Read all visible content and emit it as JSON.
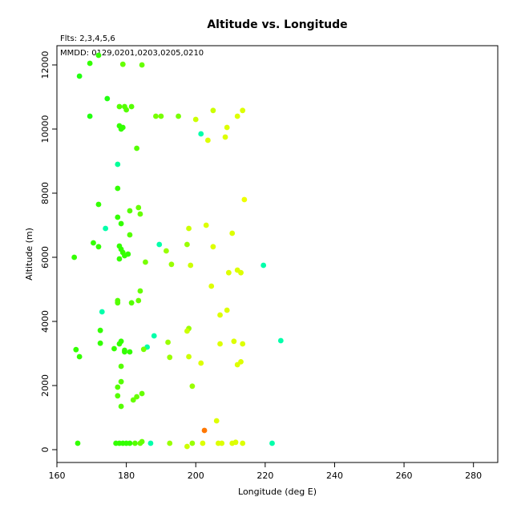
{
  "chart_data": {
    "type": "scatter",
    "title": "Altitude vs. Longitude",
    "subtitle": "Flts: 2,3,4,5,6",
    "annotation": "MMDD: 0129,0201,0203,0205,0210",
    "xlabel": "Longitude (deg E)",
    "ylabel": "Altitude (m)",
    "xlim": [
      160,
      287
    ],
    "ylim": [
      -400,
      12600
    ],
    "xticks": [
      160,
      180,
      200,
      220,
      240,
      260,
      280
    ],
    "yticks": [
      0,
      2000,
      4000,
      6000,
      8000,
      10000,
      12000
    ],
    "grid": false,
    "legend": "none",
    "points": [
      {
        "x": 172.0,
        "y": 12300,
        "color": "#33ff00"
      },
      {
        "x": 169.5,
        "y": 12050,
        "color": "#33ff00"
      },
      {
        "x": 179.0,
        "y": 12020,
        "color": "#66ff00"
      },
      {
        "x": 184.5,
        "y": 12000,
        "color": "#66ff00"
      },
      {
        "x": 166.5,
        "y": 11650,
        "color": "#22ff11"
      },
      {
        "x": 174.5,
        "y": 10950,
        "color": "#22ff11"
      },
      {
        "x": 178.0,
        "y": 10700,
        "color": "#55ff00"
      },
      {
        "x": 179.5,
        "y": 10700,
        "color": "#55ff00"
      },
      {
        "x": 181.5,
        "y": 10700,
        "color": "#55ff00"
      },
      {
        "x": 180.0,
        "y": 10600,
        "color": "#55ff00"
      },
      {
        "x": 169.5,
        "y": 10400,
        "color": "#22ff11"
      },
      {
        "x": 188.5,
        "y": 10400,
        "color": "#77ff00"
      },
      {
        "x": 190.0,
        "y": 10400,
        "color": "#77ff00"
      },
      {
        "x": 195.0,
        "y": 10400,
        "color": "#77ff00"
      },
      {
        "x": 205.0,
        "y": 10580,
        "color": "#ccff00"
      },
      {
        "x": 213.5,
        "y": 10580,
        "color": "#ddff00"
      },
      {
        "x": 212.0,
        "y": 10400,
        "color": "#ddff00"
      },
      {
        "x": 200.0,
        "y": 10300,
        "color": "#ccff00"
      },
      {
        "x": 178.0,
        "y": 10100,
        "color": "#33ff00"
      },
      {
        "x": 179.0,
        "y": 10050,
        "color": "#33ff00"
      },
      {
        "x": 178.5,
        "y": 10000,
        "color": "#33ff00"
      },
      {
        "x": 209.0,
        "y": 10050,
        "color": "#ddff00"
      },
      {
        "x": 201.5,
        "y": 9850,
        "color": "#00ffaa"
      },
      {
        "x": 208.5,
        "y": 9750,
        "color": "#ddff00"
      },
      {
        "x": 203.5,
        "y": 9650,
        "color": "#ddff00"
      },
      {
        "x": 183.0,
        "y": 9400,
        "color": "#55ff00"
      },
      {
        "x": 177.5,
        "y": 8900,
        "color": "#00ff99"
      },
      {
        "x": 177.5,
        "y": 8150,
        "color": "#33ff00"
      },
      {
        "x": 214.0,
        "y": 7800,
        "color": "#eeff00"
      },
      {
        "x": 172.0,
        "y": 7650,
        "color": "#33ff00"
      },
      {
        "x": 183.5,
        "y": 7550,
        "color": "#66ff00"
      },
      {
        "x": 181.0,
        "y": 7450,
        "color": "#55ff00"
      },
      {
        "x": 184.0,
        "y": 7350,
        "color": "#66ff00"
      },
      {
        "x": 177.5,
        "y": 7250,
        "color": "#33ff00"
      },
      {
        "x": 178.5,
        "y": 7050,
        "color": "#33ff00"
      },
      {
        "x": 203.0,
        "y": 7000,
        "color": "#ddff00"
      },
      {
        "x": 198.0,
        "y": 6900,
        "color": "#ccff00"
      },
      {
        "x": 174.0,
        "y": 6900,
        "color": "#00ffaa"
      },
      {
        "x": 210.5,
        "y": 6750,
        "color": "#ddff00"
      },
      {
        "x": 181.0,
        "y": 6700,
        "color": "#55ff00"
      },
      {
        "x": 170.5,
        "y": 6450,
        "color": "#33ff00"
      },
      {
        "x": 189.5,
        "y": 6400,
        "color": "#00ffaa"
      },
      {
        "x": 197.5,
        "y": 6400,
        "color": "#99ff00"
      },
      {
        "x": 172.0,
        "y": 6330,
        "color": "#33ff00"
      },
      {
        "x": 178.0,
        "y": 6350,
        "color": "#33ff00"
      },
      {
        "x": 205.0,
        "y": 6330,
        "color": "#ddff00"
      },
      {
        "x": 178.5,
        "y": 6250,
        "color": "#33ff00"
      },
      {
        "x": 191.5,
        "y": 6200,
        "color": "#99ff00"
      },
      {
        "x": 179.0,
        "y": 6150,
        "color": "#33ff00"
      },
      {
        "x": 180.5,
        "y": 6100,
        "color": "#33ff00"
      },
      {
        "x": 179.5,
        "y": 6050,
        "color": "#33ff00"
      },
      {
        "x": 178.0,
        "y": 5950,
        "color": "#33ff00"
      },
      {
        "x": 165.0,
        "y": 6000,
        "color": "#33ff00"
      },
      {
        "x": 185.5,
        "y": 5850,
        "color": "#77ff00"
      },
      {
        "x": 193.0,
        "y": 5780,
        "color": "#99ff00"
      },
      {
        "x": 198.5,
        "y": 5750,
        "color": "#ccff00"
      },
      {
        "x": 219.5,
        "y": 5750,
        "color": "#00ffaa"
      },
      {
        "x": 212.0,
        "y": 5600,
        "color": "#ddff00"
      },
      {
        "x": 213.0,
        "y": 5520,
        "color": "#ddff00"
      },
      {
        "x": 209.5,
        "y": 5520,
        "color": "#ddff00"
      },
      {
        "x": 204.5,
        "y": 5100,
        "color": "#ddff00"
      },
      {
        "x": 184.0,
        "y": 4950,
        "color": "#66ff00"
      },
      {
        "x": 177.5,
        "y": 4650,
        "color": "#55ff00"
      },
      {
        "x": 183.5,
        "y": 4650,
        "color": "#66ff00"
      },
      {
        "x": 177.5,
        "y": 4580,
        "color": "#55ff00"
      },
      {
        "x": 181.5,
        "y": 4580,
        "color": "#55ff00"
      },
      {
        "x": 209.0,
        "y": 4350,
        "color": "#ddff00"
      },
      {
        "x": 173.0,
        "y": 4300,
        "color": "#00ffaa"
      },
      {
        "x": 207.0,
        "y": 4200,
        "color": "#ddff00"
      },
      {
        "x": 198.0,
        "y": 3780,
        "color": "#99ff00"
      },
      {
        "x": 197.5,
        "y": 3700,
        "color": "#ccff00"
      },
      {
        "x": 172.5,
        "y": 3720,
        "color": "#33ff00"
      },
      {
        "x": 188.0,
        "y": 3550,
        "color": "#00ffaa"
      },
      {
        "x": 224.5,
        "y": 3400,
        "color": "#00ffaa"
      },
      {
        "x": 211.0,
        "y": 3380,
        "color": "#ddff00"
      },
      {
        "x": 178.5,
        "y": 3380,
        "color": "#33ff00"
      },
      {
        "x": 192.0,
        "y": 3350,
        "color": "#99ff00"
      },
      {
        "x": 172.5,
        "y": 3320,
        "color": "#33ff00"
      },
      {
        "x": 178.0,
        "y": 3300,
        "color": "#33ff00"
      },
      {
        "x": 207.0,
        "y": 3300,
        "color": "#ddff00"
      },
      {
        "x": 213.5,
        "y": 3300,
        "color": "#ddff00"
      },
      {
        "x": 186.0,
        "y": 3200,
        "color": "#00ffaa"
      },
      {
        "x": 176.5,
        "y": 3150,
        "color": "#33ff00"
      },
      {
        "x": 165.5,
        "y": 3120,
        "color": "#33ff00"
      },
      {
        "x": 185.0,
        "y": 3130,
        "color": "#77ff00"
      },
      {
        "x": 179.5,
        "y": 3100,
        "color": "#33ff00"
      },
      {
        "x": 179.5,
        "y": 3050,
        "color": "#33ff00"
      },
      {
        "x": 181.0,
        "y": 3050,
        "color": "#33ff00"
      },
      {
        "x": 166.5,
        "y": 2900,
        "color": "#33ff00"
      },
      {
        "x": 192.5,
        "y": 2880,
        "color": "#99ff00"
      },
      {
        "x": 198.0,
        "y": 2900,
        "color": "#ccff00"
      },
      {
        "x": 213.0,
        "y": 2740,
        "color": "#ddff00"
      },
      {
        "x": 201.5,
        "y": 2700,
        "color": "#ddff00"
      },
      {
        "x": 212.0,
        "y": 2650,
        "color": "#ddff00"
      },
      {
        "x": 178.5,
        "y": 2600,
        "color": "#55ff00"
      },
      {
        "x": 178.5,
        "y": 2120,
        "color": "#55ff00"
      },
      {
        "x": 177.5,
        "y": 1950,
        "color": "#55ff00"
      },
      {
        "x": 199.0,
        "y": 1980,
        "color": "#99ff00"
      },
      {
        "x": 184.5,
        "y": 1750,
        "color": "#66ff00"
      },
      {
        "x": 177.5,
        "y": 1680,
        "color": "#55ff00"
      },
      {
        "x": 183.0,
        "y": 1650,
        "color": "#66ff00"
      },
      {
        "x": 182.0,
        "y": 1550,
        "color": "#66ff00"
      },
      {
        "x": 178.5,
        "y": 1350,
        "color": "#55ff00"
      },
      {
        "x": 206.0,
        "y": 900,
        "color": "#ddff00"
      },
      {
        "x": 202.5,
        "y": 600,
        "color": "#ff7700"
      },
      {
        "x": 166.0,
        "y": 200,
        "color": "#33ff00"
      },
      {
        "x": 177.0,
        "y": 200,
        "color": "#33ff00"
      },
      {
        "x": 178.0,
        "y": 200,
        "color": "#33ff00"
      },
      {
        "x": 179.0,
        "y": 200,
        "color": "#33ff00"
      },
      {
        "x": 180.0,
        "y": 200,
        "color": "#33ff00"
      },
      {
        "x": 181.0,
        "y": 200,
        "color": "#33ff00"
      },
      {
        "x": 182.5,
        "y": 200,
        "color": "#55ff00"
      },
      {
        "x": 184.0,
        "y": 200,
        "color": "#66ff00"
      },
      {
        "x": 184.5,
        "y": 250,
        "color": "#66ff00"
      },
      {
        "x": 187.0,
        "y": 200,
        "color": "#00ffaa"
      },
      {
        "x": 192.5,
        "y": 200,
        "color": "#99ff00"
      },
      {
        "x": 197.5,
        "y": 100,
        "color": "#ccff00"
      },
      {
        "x": 199.0,
        "y": 200,
        "color": "#99ff00"
      },
      {
        "x": 202.0,
        "y": 200,
        "color": "#ddff00"
      },
      {
        "x": 206.5,
        "y": 200,
        "color": "#ddff00"
      },
      {
        "x": 207.5,
        "y": 200,
        "color": "#ddff00"
      },
      {
        "x": 210.5,
        "y": 200,
        "color": "#ddff00"
      },
      {
        "x": 211.5,
        "y": 230,
        "color": "#ddff00"
      },
      {
        "x": 213.5,
        "y": 200,
        "color": "#ddff00"
      },
      {
        "x": 222.0,
        "y": 200,
        "color": "#00ffaa"
      }
    ]
  }
}
